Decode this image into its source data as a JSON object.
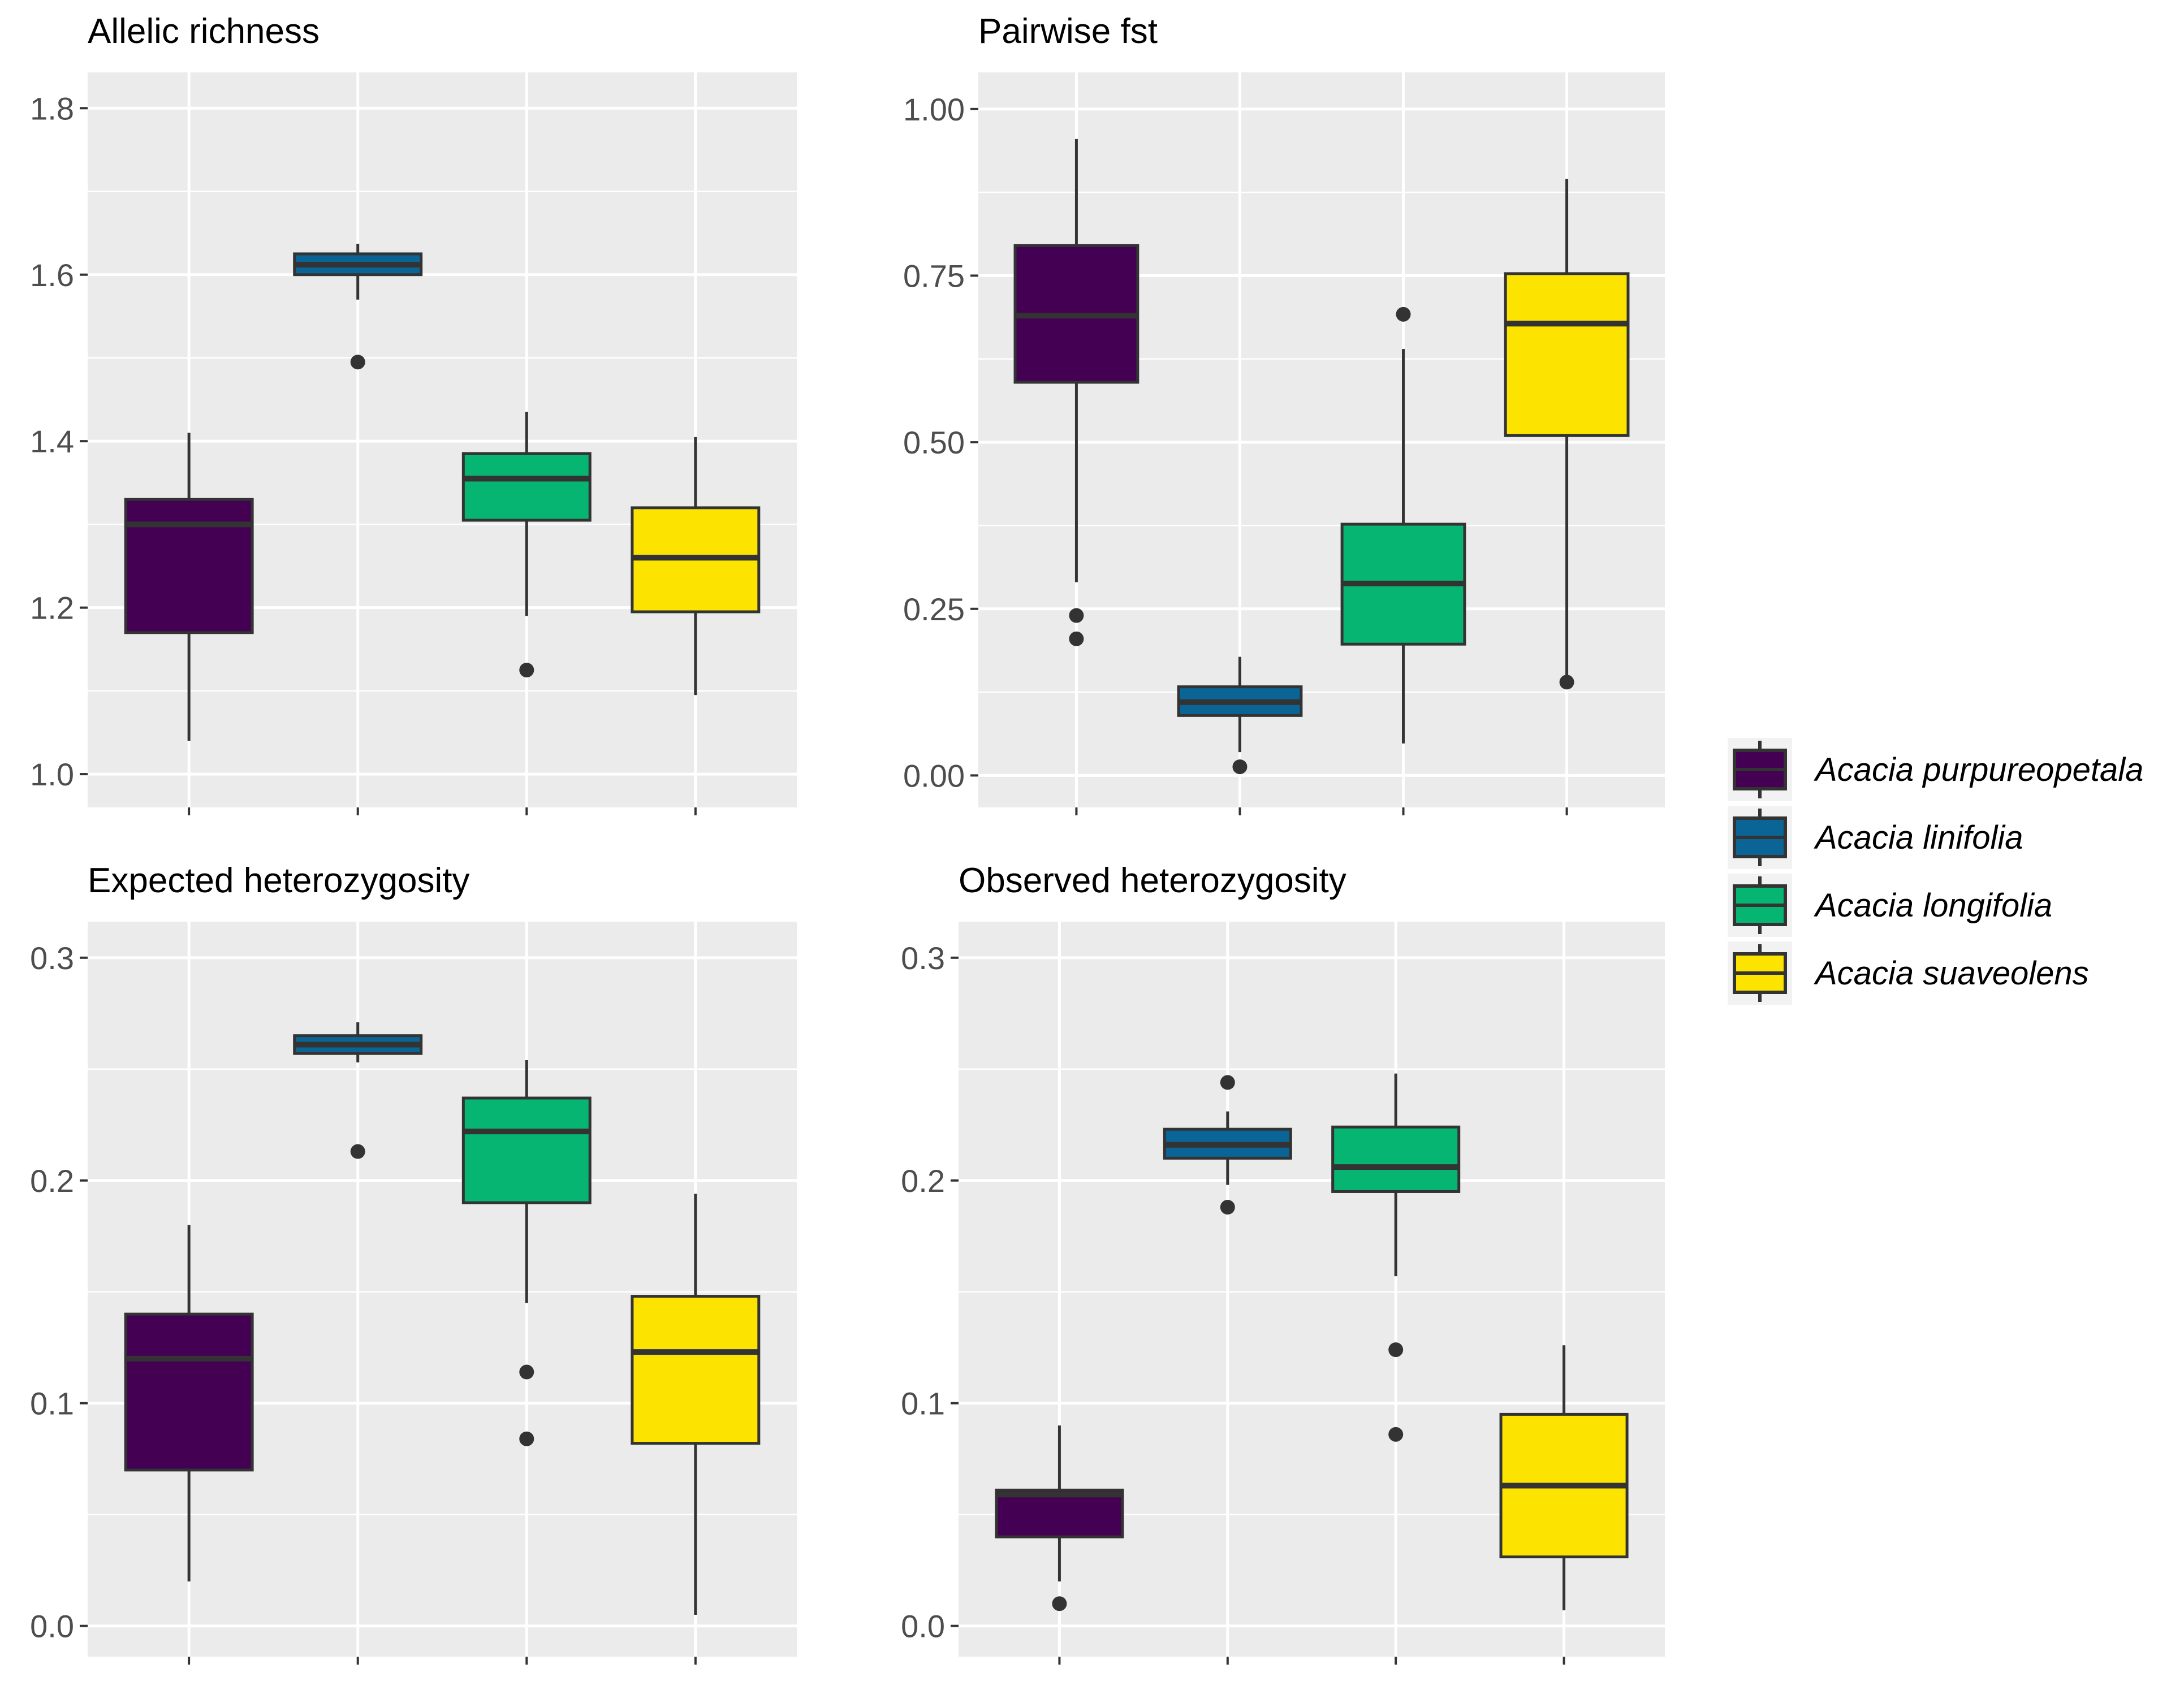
{
  "legend": {
    "items": [
      {
        "label": "Acacia purpureopetala",
        "color": "#440154"
      },
      {
        "label": "Acacia linifolia",
        "color": "#0A6596"
      },
      {
        "label": "Acacia longifolia",
        "color": "#06B572"
      },
      {
        "label": "Acacia suaveolens",
        "color": "#FDE400"
      }
    ]
  },
  "chart_data": [
    {
      "type": "box",
      "title": "Allelic richness",
      "xlabel": "",
      "ylabel": "",
      "ylim": [
        0.96,
        1.843
      ],
      "y_ticks": [
        1.0,
        1.2,
        1.4,
        1.6,
        1.8
      ],
      "tick_labels": [
        "1.0",
        "1.2",
        "1.4",
        "1.6",
        "1.8"
      ],
      "grid": true,
      "boxes": [
        {
          "series": "Acacia purpureopetala",
          "low": 1.04,
          "q1": 1.17,
          "median": 1.3,
          "q3": 1.33,
          "high": 1.41,
          "outliers": []
        },
        {
          "series": "Acacia linifolia",
          "low": 1.57,
          "q1": 1.6,
          "median": 1.612,
          "q3": 1.625,
          "high": 1.637,
          "outliers": [
            1.495
          ]
        },
        {
          "series": "Acacia longifolia",
          "low": 1.19,
          "q1": 1.305,
          "median": 1.355,
          "q3": 1.385,
          "high": 1.435,
          "outliers": [
            1.125
          ]
        },
        {
          "series": "Acacia suaveolens",
          "low": 1.095,
          "q1": 1.195,
          "median": 1.26,
          "q3": 1.32,
          "high": 1.405,
          "outliers": []
        }
      ]
    },
    {
      "type": "box",
      "title": "Pairwise fst",
      "xlabel": "",
      "ylabel": "",
      "ylim": [
        -0.048,
        1.055
      ],
      "y_ticks": [
        0.0,
        0.25,
        0.5,
        0.75,
        1.0
      ],
      "tick_labels": [
        "0.00",
        "0.25",
        "0.50",
        "0.75",
        "1.00"
      ],
      "grid": true,
      "boxes": [
        {
          "series": "Acacia purpureopetala",
          "low": 0.29,
          "q1": 0.59,
          "median": 0.69,
          "q3": 0.795,
          "high": 0.955,
          "outliers": [
            0.24,
            0.205
          ]
        },
        {
          "series": "Acacia linifolia",
          "low": 0.035,
          "q1": 0.09,
          "median": 0.11,
          "q3": 0.133,
          "high": 0.178,
          "outliers": [
            0.013
          ]
        },
        {
          "series": "Acacia longifolia",
          "low": 0.048,
          "q1": 0.197,
          "median": 0.288,
          "q3": 0.377,
          "high": 0.64,
          "outliers": [
            0.692
          ]
        },
        {
          "series": "Acacia suaveolens",
          "low": 0.14,
          "q1": 0.51,
          "median": 0.678,
          "q3": 0.753,
          "high": 0.895,
          "outliers": [
            0.14
          ]
        }
      ]
    },
    {
      "type": "box",
      "title": "Expected heterozygosity",
      "xlabel": "",
      "ylabel": "",
      "ylim": [
        -0.0138,
        0.3162
      ],
      "y_ticks": [
        0.0,
        0.1,
        0.2,
        0.3
      ],
      "tick_labels": [
        "0.0",
        "0.1",
        "0.2",
        "0.3"
      ],
      "grid": true,
      "boxes": [
        {
          "series": "Acacia purpureopetala",
          "low": 0.02,
          "q1": 0.07,
          "median": 0.12,
          "q3": 0.14,
          "high": 0.18,
          "outliers": []
        },
        {
          "series": "Acacia linifolia",
          "low": 0.253,
          "q1": 0.257,
          "median": 0.261,
          "q3": 0.265,
          "high": 0.271,
          "outliers": [
            0.213
          ]
        },
        {
          "series": "Acacia longifolia",
          "low": 0.145,
          "q1": 0.19,
          "median": 0.222,
          "q3": 0.237,
          "high": 0.254,
          "outliers": [
            0.114,
            0.084
          ]
        },
        {
          "series": "Acacia suaveolens",
          "low": 0.005,
          "q1": 0.082,
          "median": 0.123,
          "q3": 0.148,
          "high": 0.194,
          "outliers": []
        }
      ]
    },
    {
      "type": "box",
      "title": "Observed heterozygosity",
      "xlabel": "",
      "ylabel": "",
      "ylim": [
        -0.0138,
        0.3162
      ],
      "y_ticks": [
        0.0,
        0.1,
        0.2,
        0.3
      ],
      "tick_labels": [
        "0.0",
        "0.1",
        "0.2",
        "0.3"
      ],
      "grid": true,
      "boxes": [
        {
          "series": "Acacia purpureopetala",
          "low": 0.02,
          "q1": 0.04,
          "median": 0.059,
          "q3": 0.061,
          "high": 0.09,
          "outliers": [
            0.01
          ]
        },
        {
          "series": "Acacia linifolia",
          "low": 0.198,
          "q1": 0.21,
          "median": 0.216,
          "q3": 0.223,
          "high": 0.231,
          "outliers": [
            0.244,
            0.188
          ]
        },
        {
          "series": "Acacia longifolia",
          "low": 0.157,
          "q1": 0.195,
          "median": 0.206,
          "q3": 0.224,
          "high": 0.248,
          "outliers": [
            0.124,
            0.086
          ]
        },
        {
          "series": "Acacia suaveolens",
          "low": 0.007,
          "q1": 0.031,
          "median": 0.063,
          "q3": 0.095,
          "high": 0.126,
          "outliers": []
        }
      ]
    }
  ]
}
